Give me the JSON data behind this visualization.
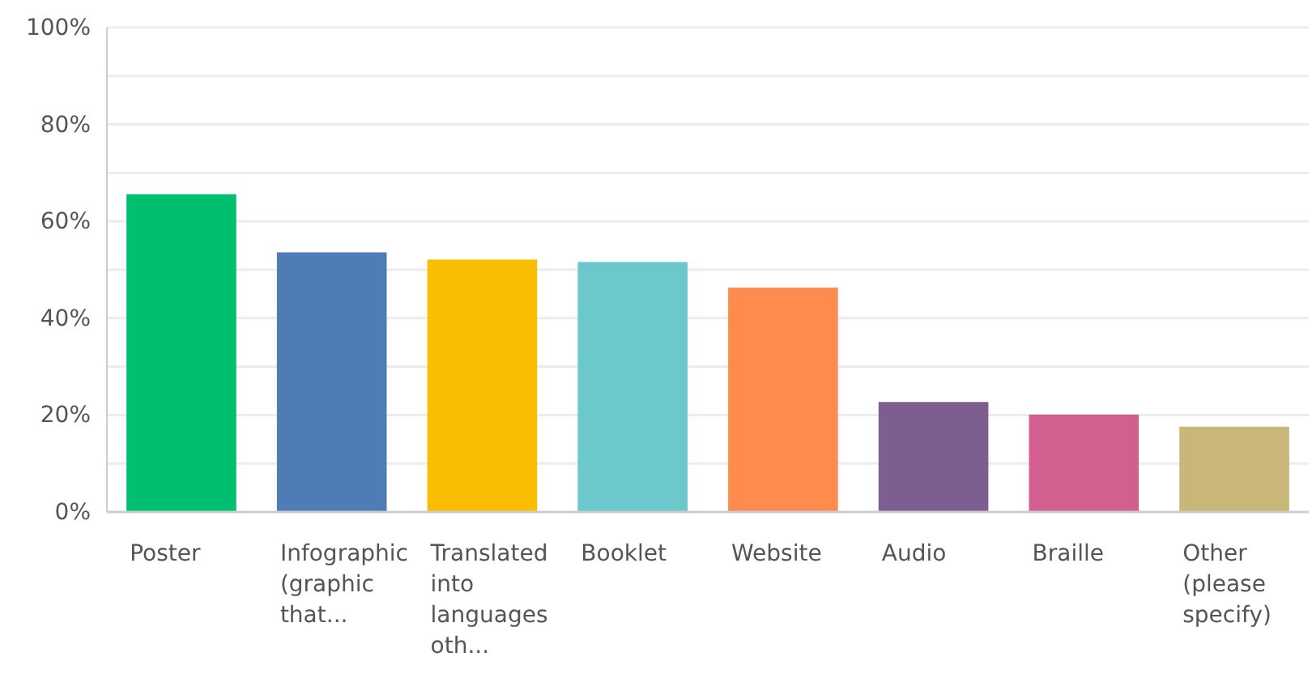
{
  "chart_data": {
    "type": "bar",
    "categories": [
      "Poster",
      "Infographic (graphic that...",
      "Translated into languages oth...",
      "Booklet",
      "Website",
      "Audio",
      "Braille",
      "Other (please specify)"
    ],
    "values": [
      65.6,
      53.6,
      52.1,
      51.6,
      46.3,
      22.7,
      20.1,
      17.6
    ],
    "colors": [
      "#00bf6f",
      "#507cb6",
      "#f9be00",
      "#6bc8cd",
      "#ff8b4f",
      "#7d5e90",
      "#d25f90",
      "#c9b779"
    ],
    "ylim": [
      0,
      100
    ],
    "yticks": [
      {
        "value": 0,
        "label": "0%"
      },
      {
        "value": 10,
        "label": null
      },
      {
        "value": 20,
        "label": "20%"
      },
      {
        "value": 30,
        "label": null
      },
      {
        "value": 40,
        "label": "40%"
      },
      {
        "value": 50,
        "label": null
      },
      {
        "value": 60,
        "label": "60%"
      },
      {
        "value": 70,
        "label": null
      },
      {
        "value": 80,
        "label": "80%"
      },
      {
        "value": 90,
        "label": null
      },
      {
        "value": 100,
        "label": "100%"
      }
    ],
    "grid": "y"
  }
}
